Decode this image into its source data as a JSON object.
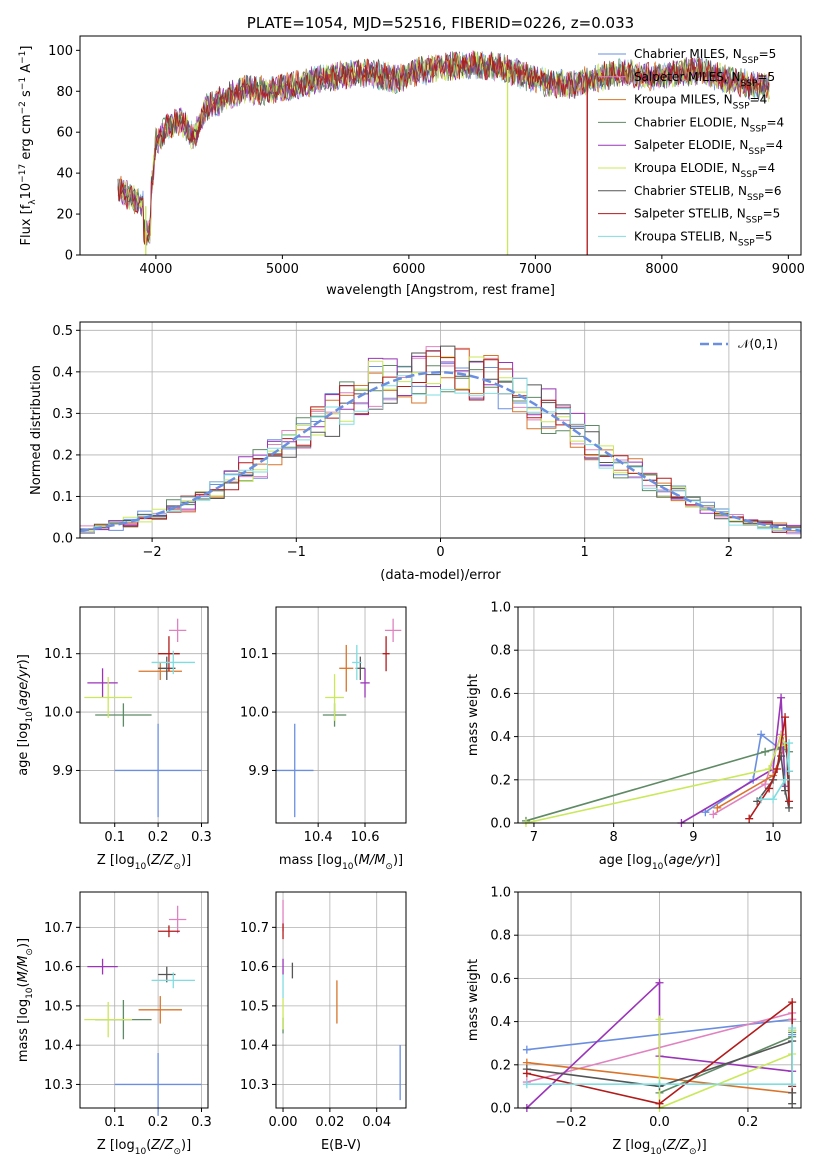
{
  "colors": {
    "Chabrier MILES": "#6a8fe0",
    "Salpeter MILES": "#e082c0",
    "Kroupa MILES": "#d9742a",
    "Chabrier ELODIE": "#5e8a64",
    "Salpeter ELODIE": "#9a35b8",
    "Kroupa ELODIE": "#c9e85a",
    "Chabrier STELIB": "#555555",
    "Salpeter STELIB": "#b31b1b",
    "Kroupa STELIB": "#7fdde0"
  },
  "chart_data": [
    {
      "id": "spectrum",
      "type": "line",
      "title": "PLATE=1054, MJD=52516, FIBERID=0226, z=0.033",
      "xlabel": "wavelength [Angstrom, rest frame]",
      "ylabel": "Flux [fλ10⁻¹⁷ erg cm⁻² s⁻¹ A⁻¹]",
      "xlim": [
        3400,
        9100
      ],
      "ylim": [
        0,
        107
      ],
      "xticks": [
        4000,
        5000,
        6000,
        7000,
        8000,
        9000
      ],
      "yticks": [
        0,
        20,
        40,
        60,
        80,
        100
      ],
      "legend_position": "top-right",
      "series": [
        {
          "name": "Chabrier MILES, N_SSP=5"
        },
        {
          "name": "Salpeter MILES, N_SSP=5"
        },
        {
          "name": "Kroupa MILES, N_SSP=4"
        },
        {
          "name": "Chabrier ELODIE, N_SSP=4"
        },
        {
          "name": "Salpeter ELODIE, N_SSP=4"
        },
        {
          "name": "Kroupa ELODIE, N_SSP=4"
        },
        {
          "name": "Chabrier STELIB, N_SSP=6"
        },
        {
          "name": "Salpeter STELIB, N_SSP=5"
        },
        {
          "name": "Kroupa STELIB, N_SSP=5"
        }
      ],
      "continuum": {
        "x": [
          3700,
          3800,
          3900,
          3950,
          4000,
          4100,
          4200,
          4300,
          4400,
          4500,
          4700,
          4900,
          5100,
          5300,
          5500,
          5700,
          5900,
          6100,
          6300,
          6500,
          6700,
          6900,
          7100,
          7300,
          7500,
          7700,
          7900,
          8100,
          8300,
          8500,
          8700,
          8850
        ],
        "y": [
          33,
          28,
          25,
          22,
          55,
          63,
          66,
          57,
          72,
          75,
          81,
          80,
          83,
          86,
          88,
          89,
          86,
          90,
          92,
          93,
          92,
          88,
          84,
          83,
          87,
          89,
          87,
          89,
          90,
          86,
          83,
          82
        ]
      },
      "dropouts": [
        {
          "series": "Kroupa ELODIE, N_SSP=4",
          "x": 3920
        },
        {
          "series": "Kroupa ELODIE, N_SSP=4",
          "x": 6780
        },
        {
          "series": "Salpeter STELIB, N_SSP=5",
          "x": 7410
        }
      ]
    },
    {
      "id": "residual-histogram",
      "type": "bar",
      "xlabel": "(data-model)/error",
      "ylabel": "Normed distribution",
      "xlim": [
        -2.5,
        2.5
      ],
      "ylim": [
        0,
        0.52
      ],
      "xticks": [
        -2,
        -1,
        0,
        1,
        2
      ],
      "yticks": [
        0.0,
        0.1,
        0.2,
        0.3,
        0.4,
        0.5
      ],
      "bin_width": 0.1,
      "reference_curve": {
        "name": "𝒩(0,1)",
        "type": "gaussian",
        "mean": 0,
        "sigma": 1,
        "color": "#6a8fe0"
      },
      "legend_position": "top-right"
    },
    {
      "id": "age-vs-Z",
      "type": "scatter",
      "xlabel": "Z [log₁₀(Z/Z⊙)]",
      "ylabel": "age  [log₁₀(age/yr)]",
      "xlim": [
        0.02,
        0.315
      ],
      "ylim": [
        9.81,
        10.18
      ],
      "xticks": [
        0.1,
        0.2,
        0.3
      ],
      "yticks": [
        9.9,
        10.0,
        10.1
      ],
      "points": [
        {
          "series": "Chabrier MILES",
          "x": 0.2,
          "xerr": 0.1,
          "y": 9.9,
          "yerr": 0.08
        },
        {
          "series": "Salpeter MILES",
          "x": 0.245,
          "xerr": 0.02,
          "y": 10.14,
          "yerr": 0.02
        },
        {
          "series": "Kroupa MILES",
          "x": 0.205,
          "xerr": 0.05,
          "y": 10.07,
          "yerr": 0.015
        },
        {
          "series": "Chabrier ELODIE",
          "x": 0.12,
          "xerr": 0.065,
          "y": 9.995,
          "yerr": 0.02
        },
        {
          "series": "Salpeter ELODIE",
          "x": 0.072,
          "xerr": 0.035,
          "y": 10.05,
          "yerr": 0.025
        },
        {
          "series": "Kroupa ELODIE",
          "x": 0.085,
          "xerr": 0.055,
          "y": 10.025,
          "yerr": 0.035
        },
        {
          "series": "Chabrier STELIB",
          "x": 0.22,
          "xerr": 0.02,
          "y": 10.075,
          "yerr": 0.02
        },
        {
          "series": "Salpeter STELIB",
          "x": 0.225,
          "xerr": 0.025,
          "y": 10.1,
          "yerr": 0.03
        },
        {
          "series": "Kroupa STELIB",
          "x": 0.235,
          "xerr": 0.05,
          "y": 10.085,
          "yerr": 0.02
        }
      ]
    },
    {
      "id": "age-vs-mass",
      "type": "scatter",
      "xlabel": "mass [log₁₀(M/M⊙)]",
      "xlim": [
        10.22,
        10.775
      ],
      "ylim": [
        9.81,
        10.18
      ],
      "xticks": [
        10.4,
        10.6
      ],
      "yticks": [
        9.9,
        10.0,
        10.1
      ],
      "points": [
        {
          "series": "Chabrier MILES",
          "x": 10.3,
          "xerr": 0.08,
          "y": 9.9,
          "yerr": 0.08
        },
        {
          "series": "Salpeter MILES",
          "x": 10.72,
          "xerr": 0.035,
          "y": 10.14,
          "yerr": 0.02
        },
        {
          "series": "Kroupa MILES",
          "x": 10.52,
          "xerr": 0.03,
          "y": 10.075,
          "yerr": 0.04
        },
        {
          "series": "Chabrier ELODIE",
          "x": 10.47,
          "xerr": 0.05,
          "y": 9.995,
          "yerr": 0.02
        },
        {
          "series": "Salpeter ELODIE",
          "x": 10.6,
          "xerr": 0.02,
          "y": 10.05,
          "yerr": 0.025
        },
        {
          "series": "Kroupa ELODIE",
          "x": 10.47,
          "xerr": 0.04,
          "y": 10.025,
          "yerr": 0.04
        },
        {
          "series": "Chabrier STELIB",
          "x": 10.58,
          "xerr": 0.02,
          "y": 10.075,
          "yerr": 0.02
        },
        {
          "series": "Salpeter STELIB",
          "x": 10.69,
          "xerr": 0.015,
          "y": 10.1,
          "yerr": 0.03
        },
        {
          "series": "Kroupa STELIB",
          "x": 10.565,
          "xerr": 0.02,
          "y": 10.085,
          "yerr": 0.03
        }
      ]
    },
    {
      "id": "mass-weight-vs-age",
      "type": "line",
      "xlabel": "age  [log₁₀(age/yr)]",
      "ylabel": "mass weight",
      "xlim": [
        6.8,
        10.35
      ],
      "ylim": [
        0,
        1
      ],
      "xticks": [
        7,
        8,
        9,
        10
      ],
      "yticks": [
        0.0,
        0.2,
        0.4,
        0.6,
        0.8,
        1.0
      ],
      "series": [
        {
          "name": "Chabrier MILES",
          "x": [
            9.15,
            9.75,
            9.85,
            10.1
          ],
          "y": [
            0.05,
            0.2,
            0.41,
            0.34
          ]
        },
        {
          "name": "Salpeter MILES",
          "x": [
            9.25,
            9.9,
            10.1
          ],
          "y": [
            0.04,
            0.18,
            0.41
          ]
        },
        {
          "name": "Kroupa MILES",
          "x": [
            9.3,
            10.0,
            10.15
          ],
          "y": [
            0.07,
            0.22,
            0.36
          ]
        },
        {
          "name": "Chabrier ELODIE",
          "x": [
            6.9,
            9.9,
            10.1,
            10.2
          ],
          "y": [
            0.01,
            0.33,
            0.35,
            0.33
          ]
        },
        {
          "name": "Salpeter ELODIE",
          "x": [
            8.85,
            10.0,
            10.1,
            10.15
          ],
          "y": [
            0.0,
            0.25,
            0.58,
            0.17
          ]
        },
        {
          "name": "Kroupa ELODIE",
          "x": [
            6.9,
            9.95,
            10.1,
            10.15
          ],
          "y": [
            0.0,
            0.25,
            0.4,
            0.36
          ]
        },
        {
          "name": "Chabrier STELIB",
          "x": [
            9.8,
            10.0,
            10.1,
            10.15,
            10.2,
            10.2
          ],
          "y": [
            0.1,
            0.2,
            0.31,
            0.15,
            0.07,
            0.24
          ]
        },
        {
          "name": "Salpeter STELIB",
          "x": [
            9.7,
            9.95,
            10.05,
            10.15,
            10.2
          ],
          "y": [
            0.02,
            0.16,
            0.25,
            0.49,
            0.1
          ]
        },
        {
          "name": "Kroupa STELIB",
          "x": [
            9.85,
            10.0,
            10.15,
            10.2,
            10.2
          ],
          "y": [
            0.11,
            0.11,
            0.2,
            0.37,
            0.24
          ]
        }
      ]
    },
    {
      "id": "mass-vs-Z",
      "type": "scatter",
      "xlabel": "Z [log₁₀(Z/Z⊙)]",
      "ylabel": "mass [log₁₀(M/M⊙)]",
      "xlim": [
        0.02,
        0.315
      ],
      "ylim": [
        10.24,
        10.79
      ],
      "xticks": [
        0.1,
        0.2,
        0.3
      ],
      "yticks": [
        10.3,
        10.4,
        10.5,
        10.6,
        10.7
      ],
      "points": [
        {
          "series": "Chabrier MILES",
          "x": 0.2,
          "xerr": 0.1,
          "y": 10.3,
          "yerr": 0.08
        },
        {
          "series": "Salpeter MILES",
          "x": 0.245,
          "xerr": 0.02,
          "y": 10.72,
          "yerr": 0.035
        },
        {
          "series": "Kroupa MILES",
          "x": 0.205,
          "xerr": 0.05,
          "y": 10.49,
          "yerr": 0.035
        },
        {
          "series": "Chabrier ELODIE",
          "x": 0.12,
          "xerr": 0.065,
          "y": 10.465,
          "yerr": 0.05
        },
        {
          "series": "Salpeter ELODIE",
          "x": 0.072,
          "xerr": 0.035,
          "y": 10.6,
          "yerr": 0.02
        },
        {
          "series": "Kroupa ELODIE",
          "x": 0.085,
          "xerr": 0.055,
          "y": 10.465,
          "yerr": 0.045
        },
        {
          "series": "Chabrier STELIB",
          "x": 0.22,
          "xerr": 0.02,
          "y": 10.58,
          "yerr": 0.02
        },
        {
          "series": "Salpeter STELIB",
          "x": 0.225,
          "xerr": 0.025,
          "y": 10.69,
          "yerr": 0.015
        },
        {
          "series": "Kroupa STELIB",
          "x": 0.235,
          "xerr": 0.05,
          "y": 10.565,
          "yerr": 0.02
        }
      ]
    },
    {
      "id": "mass-vs-EBV",
      "type": "scatter",
      "xlabel": "E(B-V)",
      "xlim": [
        -0.003,
        0.0525
      ],
      "ylim": [
        10.24,
        10.79
      ],
      "xticks": [
        0.0,
        0.02,
        0.04
      ],
      "yticks": [
        10.3,
        10.4,
        10.5,
        10.6,
        10.7
      ],
      "points": [
        {
          "series": "Chabrier MILES",
          "x": 0.05,
          "y": 10.33,
          "yerr": 0.07
        },
        {
          "series": "Salpeter MILES",
          "x": 0.0,
          "y": 10.73,
          "yerr": 0.04
        },
        {
          "series": "Kroupa MILES",
          "x": 0.023,
          "y": 10.51,
          "yerr": 0.055
        },
        {
          "series": "Chabrier ELODIE",
          "x": 0.0,
          "y": 10.45,
          "yerr": 0.02
        },
        {
          "series": "Salpeter ELODIE",
          "x": 0.0,
          "y": 10.6,
          "yerr": 0.02
        },
        {
          "series": "Kroupa ELODIE",
          "x": 0.0,
          "y": 10.48,
          "yerr": 0.04
        },
        {
          "series": "Chabrier STELIB",
          "x": 0.004,
          "y": 10.59,
          "yerr": 0.02
        },
        {
          "series": "Salpeter STELIB",
          "x": 0.0,
          "y": 10.69,
          "yerr": 0.02
        },
        {
          "series": "Kroupa STELIB",
          "x": 0.0,
          "y": 10.55,
          "yerr": 0.03
        }
      ]
    },
    {
      "id": "mass-weight-vs-Z",
      "type": "line",
      "xlabel": "Z [log₁₀(Z/Z⊙)]",
      "ylabel": "mass weight",
      "xlim": [
        -0.32,
        0.32
      ],
      "ylim": [
        0,
        1
      ],
      "xticks": [
        -0.2,
        0.0,
        0.2
      ],
      "yticks": [
        0.0,
        0.2,
        0.4,
        0.6,
        0.8,
        1.0
      ],
      "series": [
        {
          "name": "Chabrier MILES",
          "x": [
            -0.3,
            0.3,
            0.3
          ],
          "y": [
            0.27,
            0.41,
            0.34
          ]
        },
        {
          "name": "Salpeter MILES",
          "x": [
            -0.3,
            0.3,
            0.3
          ],
          "y": [
            0.12,
            0.44,
            0.41
          ]
        },
        {
          "name": "Kroupa MILES",
          "x": [
            -0.3,
            0.3,
            0.3
          ],
          "y": [
            0.21,
            0.07,
            0.36
          ]
        },
        {
          "name": "Chabrier ELODIE",
          "x": [
            0.0,
            0.3,
            0.3
          ],
          "y": [
            0.07,
            0.33,
            0.35
          ]
        },
        {
          "name": "Salpeter ELODIE",
          "x": [
            -0.3,
            0.0,
            0.0,
            0.3
          ],
          "y": [
            0.0,
            0.58,
            0.24,
            0.17
          ]
        },
        {
          "name": "Kroupa ELODIE",
          "x": [
            0.0,
            0.0,
            0.3,
            0.3
          ],
          "y": [
            0.41,
            0.0,
            0.25,
            0.36
          ]
        },
        {
          "name": "Chabrier STELIB",
          "x": [
            -0.3,
            0.0,
            0.3,
            0.3,
            0.3
          ],
          "y": [
            0.18,
            0.1,
            0.31,
            0.07,
            0.02
          ]
        },
        {
          "name": "Salpeter STELIB",
          "x": [
            -0.3,
            0.0,
            0.3,
            0.3
          ],
          "y": [
            0.16,
            0.02,
            0.49,
            0.1
          ]
        },
        {
          "name": "Kroupa STELIB",
          "x": [
            -0.3,
            0.0,
            0.3,
            0.3
          ],
          "y": [
            0.11,
            0.11,
            0.11,
            0.37
          ]
        }
      ]
    }
  ]
}
